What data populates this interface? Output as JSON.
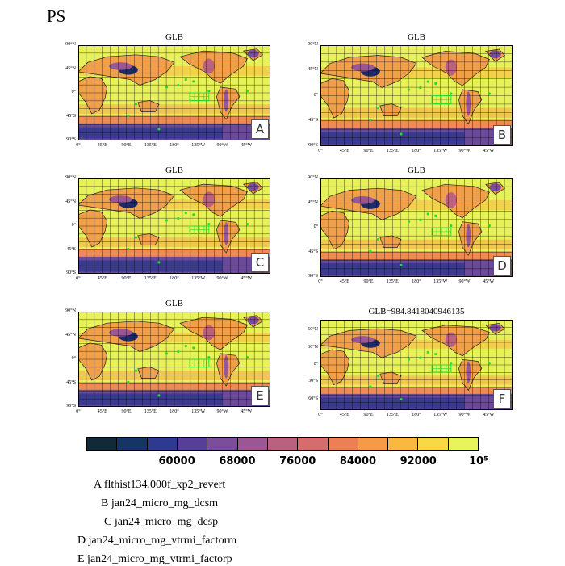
{
  "figure": {
    "title": "PS"
  },
  "map_defaults": {
    "lat_ticks": [
      "90°N",
      "45°N",
      "0°",
      "45°S",
      "90°S"
    ],
    "lon_ticks": [
      "0°",
      "45°E",
      "90°E",
      "135°E",
      "180°",
      "135°W",
      "90°W",
      "45°W"
    ]
  },
  "panels": [
    {
      "id": "A",
      "title": "GLB",
      "letter": "A"
    },
    {
      "id": "B",
      "title": "GLB",
      "letter": "B"
    },
    {
      "id": "C",
      "title": "GLB",
      "letter": "C"
    },
    {
      "id": "D",
      "title": "GLB",
      "letter": "D"
    },
    {
      "id": "E",
      "title": "GLB",
      "letter": "E"
    },
    {
      "id": "F",
      "title": "GLB=984.8418040946135",
      "letter": "F",
      "lat_ticks": [
        "60°N",
        "30°N",
        "0°",
        "30°S",
        "60°S"
      ]
    }
  ],
  "colorbar": {
    "colors": [
      "#102a3a",
      "#153565",
      "#2e3a8e",
      "#573f98",
      "#7b4d9a",
      "#9a5794",
      "#b8627f",
      "#d46e6c",
      "#ec7f55",
      "#f59a45",
      "#f8b93e",
      "#f8d945",
      "#e7f55a"
    ],
    "labels": [
      "60000",
      "68000",
      "76000",
      "84000",
      "92000",
      "10⁵"
    ]
  },
  "legend": [
    "A  flthist134.000f_xp2_revert",
    "B  jan24_micro_mg_dcsm",
    "C  jan24_micro_mg_dcsp",
    "D  jan24_micro_mg_vtrmi_factorm",
    "E  jan24_micro_mg_vtrmi_factorp"
  ]
}
